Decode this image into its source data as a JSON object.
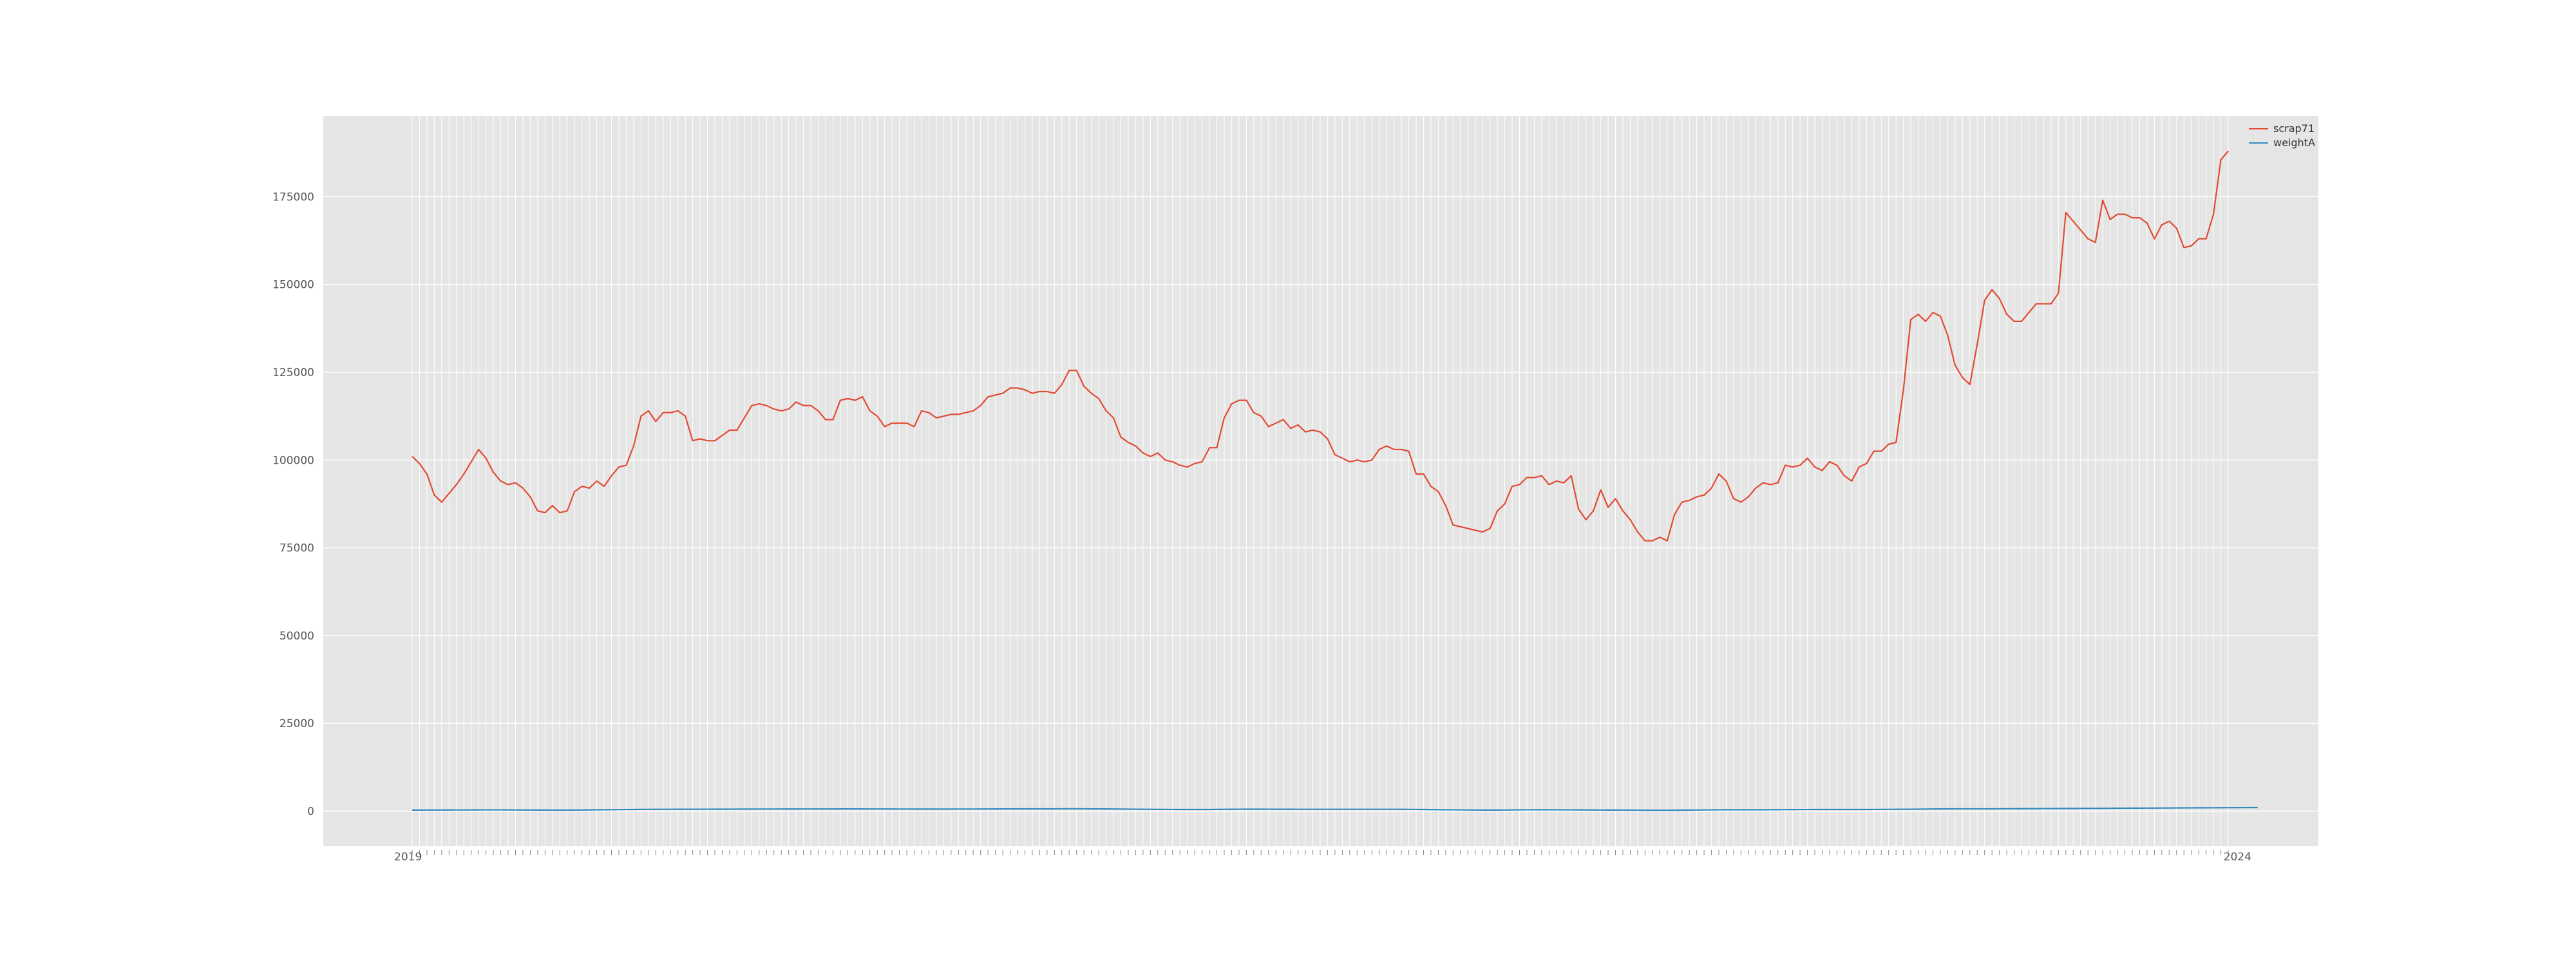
{
  "chart_data": {
    "type": "line",
    "title": "",
    "xlabel": "",
    "ylabel": "",
    "x_tick_labels": {
      "first": "2019",
      "last": "2024"
    },
    "yticks": [
      0,
      25000,
      50000,
      75000,
      100000,
      125000,
      150000,
      175000
    ],
    "ylim": [
      -10000,
      198000
    ],
    "grid": true,
    "legend_position": "top-right",
    "colors": {
      "background": "#e5e5e5",
      "grid": "#ffffff",
      "scrap71": "#e24a33",
      "weightA": "#348abd"
    },
    "series": [
      {
        "name": "scrap71",
        "values": [
          101000,
          99000,
          96000,
          90000,
          88000,
          90500,
          93000,
          96000,
          99500,
          103000,
          100500,
          96500,
          94000,
          93000,
          93500,
          92000,
          89500,
          85500,
          85000,
          87000,
          85000,
          85500,
          91000,
          92500,
          92000,
          94000,
          92500,
          95500,
          98000,
          98500,
          104000,
          112500,
          114000,
          111000,
          113500,
          113500,
          114000,
          112500,
          105500,
          106000,
          105500,
          105500,
          107000,
          108500,
          108500,
          112000,
          115500,
          116000,
          115500,
          114500,
          114000,
          114500,
          116500,
          115500,
          115500,
          114000,
          111500,
          111500,
          117000,
          117500,
          117000,
          118000,
          114000,
          112500,
          109500,
          110500,
          110500,
          110500,
          109500,
          114000,
          113500,
          112000,
          112500,
          113000,
          113000,
          113500,
          114000,
          115500,
          118000,
          118500,
          119000,
          120500,
          120500,
          120000,
          119000,
          119500,
          119500,
          119000,
          121500,
          125500,
          125500,
          121000,
          119000,
          117500,
          114000,
          112000,
          106500,
          105000,
          104000,
          102000,
          101000,
          102000,
          100000,
          99500,
          98500,
          98000,
          99000,
          99500,
          103500,
          103500,
          112000,
          116000,
          117000,
          117000,
          113500,
          112500,
          109500,
          110500,
          111500,
          109000,
          110000,
          108000,
          108500,
          108000,
          106000,
          101500,
          100500,
          99500,
          100000,
          99500,
          100000,
          103000,
          104000,
          103000,
          103000,
          102500,
          96000,
          96000,
          92500,
          91000,
          87000,
          81500,
          81000,
          80500,
          80000,
          79500,
          80500,
          85500,
          87500,
          92500,
          93000,
          95000,
          95000,
          95500,
          93000,
          94000,
          93500,
          95500,
          86000,
          83000,
          85500,
          91500,
          86500,
          89000,
          85500,
          83000,
          79500,
          77000,
          77000,
          78000,
          77000,
          84500,
          88000,
          88500,
          89500,
          90000,
          92000,
          96000,
          94000,
          89000,
          88000,
          89500,
          92000,
          93500,
          93000,
          93500,
          98500,
          98000,
          98500,
          100500,
          98000,
          97000,
          99500,
          98500,
          95500,
          94000,
          98000,
          99000,
          102500,
          102500,
          104500,
          105000,
          120000,
          140000,
          141500,
          139500,
          142000,
          141000,
          135500,
          127000,
          123500,
          121500,
          133000,
          145500,
          148500,
          146000,
          141500,
          139500,
          139500,
          142000,
          144500,
          144500,
          144500,
          147500,
          170500,
          168000,
          165500,
          163000,
          162000,
          174000,
          168500,
          170000,
          170000,
          169000,
          169000,
          167500,
          163000,
          167000,
          168000,
          166000,
          160500,
          161000,
          163000,
          163000,
          170000,
          185500,
          188000
        ]
      },
      {
        "name": "weightA",
        "values": [
          300,
          300,
          310,
          310,
          320,
          320,
          330,
          330,
          340,
          340,
          350,
          350,
          350,
          340,
          330,
          320,
          310,
          300,
          290,
          280,
          270,
          280,
          300,
          320,
          340,
          360,
          380,
          400,
          420,
          440,
          460,
          480,
          490,
          500,
          500,
          510,
          520,
          520,
          530,
          540,
          540,
          550,
          550,
          560,
          560,
          570,
          570,
          580,
          580,
          580,
          590,
          590,
          590,
          600,
          600,
          600,
          600,
          600,
          610,
          610,
          610,
          610,
          600,
          600,
          590,
          590,
          580,
          580,
          570,
          570,
          570,
          570,
          570,
          570,
          580,
          580,
          580,
          590,
          600,
          610,
          620,
          630,
          640,
          640,
          640,
          640,
          640,
          640,
          650,
          660,
          660,
          650,
          640,
          630,
          620,
          600,
          580,
          560,
          540,
          520,
          500,
          490,
          480,
          470,
          460,
          450,
          450,
          450,
          460,
          480,
          500,
          520,
          540,
          550,
          550,
          550,
          540,
          530,
          520,
          520,
          510,
          510,
          510,
          510,
          510,
          510,
          510,
          510,
          510,
          510,
          510,
          510,
          510,
          510,
          500,
          490,
          470,
          450,
          430,
          410,
          390,
          370,
          350,
          330,
          310,
          300,
          300,
          300,
          310,
          330,
          350,
          370,
          380,
          380,
          380,
          370,
          360,
          350,
          340,
          330,
          320,
          310,
          300,
          290,
          280,
          270,
          260,
          250,
          240,
          240,
          240,
          250,
          270,
          290,
          310,
          330,
          350,
          370,
          380,
          380,
          380,
          380,
          380,
          390,
          400,
          410,
          420,
          430,
          440,
          440,
          450,
          460,
          460,
          460,
          460,
          460,
          460,
          460,
          470,
          480,
          490,
          500,
          520,
          540,
          560,
          580,
          600,
          620,
          640,
          650,
          650,
          650,
          650,
          650,
          650,
          660,
          670,
          680,
          690,
          700,
          710,
          720,
          730,
          740,
          750,
          760,
          770,
          780,
          790,
          800,
          810,
          820,
          830,
          840,
          850,
          860,
          870,
          880,
          890,
          900,
          910,
          920,
          930,
          940,
          950,
          960,
          970,
          980,
          990,
          1000,
          1010
        ]
      }
    ]
  }
}
